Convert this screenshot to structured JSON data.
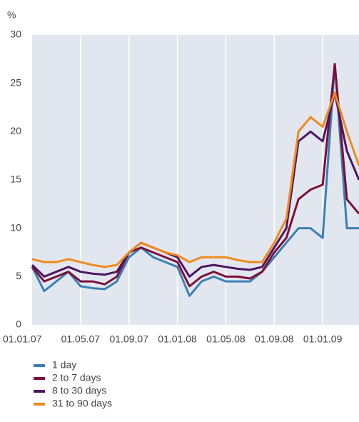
{
  "chart_data": {
    "type": "line",
    "y_label": "%",
    "x": [
      "01.01.07",
      "01.02.07",
      "01.03.07",
      "01.04.07",
      "01.05.07",
      "01.06.07",
      "01.07.07",
      "01.08.07",
      "01.09.07",
      "01.10.07",
      "01.11.07",
      "01.12.07",
      "01.01.08",
      "01.02.08",
      "01.03.08",
      "01.04.08",
      "01.05.08",
      "01.06.08",
      "01.07.08",
      "01.08.08",
      "01.09.08",
      "01.10.08",
      "01.11.08",
      "01.12.08",
      "01.01.09",
      "01.02.09",
      "01.03.09",
      "01.04.09"
    ],
    "xlim": [
      "01.01.07",
      "01.04.09"
    ],
    "xticks": [
      "01.01.07",
      "01.05.07",
      "01.09.07",
      "01.01.08",
      "01.05.08",
      "01.09.08",
      "01.01.09"
    ],
    "ylim": [
      0,
      30
    ],
    "yticks": [
      0,
      5,
      10,
      15,
      20,
      25,
      30
    ],
    "grid": true,
    "series": [
      {
        "name": "1 day",
        "color": "#3b80b3",
        "values": [
          6,
          3.5,
          4.5,
          5.5,
          4,
          3.8,
          3.7,
          4.5,
          7,
          8,
          7,
          6.5,
          6,
          3,
          4.5,
          5,
          4.5,
          4.5,
          4.5,
          5.5,
          7,
          8.5,
          10,
          10,
          9,
          27,
          10,
          10
        ]
      },
      {
        "name": "2 to 7 days",
        "color": "#7d0f3b",
        "values": [
          6,
          4.5,
          5,
          5.5,
          4.5,
          4.5,
          4.2,
          5,
          7.5,
          8,
          7.5,
          7,
          6.5,
          4,
          5,
          5.5,
          5,
          5,
          4.8,
          5.5,
          7.5,
          9,
          13,
          14,
          14.5,
          27,
          13,
          11.5
        ]
      },
      {
        "name": "8 to 30 days",
        "color": "#4d1662",
        "values": [
          6.2,
          5,
          5.5,
          6,
          5.5,
          5.3,
          5.2,
          5.5,
          7.5,
          8.5,
          8,
          7.5,
          7,
          5,
          6,
          6.2,
          6,
          5.8,
          5.7,
          6,
          8,
          10,
          19,
          20,
          19,
          24,
          18,
          15
        ]
      },
      {
        "name": "31 to 90 days",
        "color": "#f08a1c",
        "values": [
          6.8,
          6.5,
          6.5,
          6.8,
          6.5,
          6.2,
          6,
          6.2,
          7.5,
          8.5,
          8,
          7.5,
          7.2,
          6.5,
          7,
          7,
          7,
          6.7,
          6.5,
          6.5,
          8.5,
          11,
          20,
          21.5,
          20.5,
          24,
          20,
          16.5
        ]
      }
    ]
  }
}
